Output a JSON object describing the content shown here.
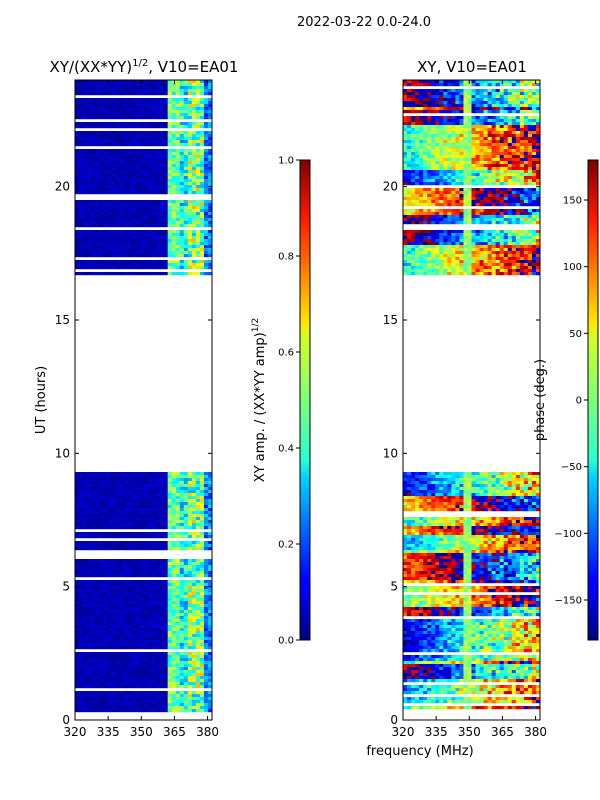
{
  "figure_title": "2022-03-22 0.0-24.0",
  "xlabel": "frequency (MHz)",
  "chart_data": [
    {
      "type": "heatmap",
      "title_main": "XY/(XX*YY)",
      "title_sup": "1/2",
      "title_rest": ", V10=EA01",
      "ylabel": "UT (hours)",
      "xlim": [
        320,
        382
      ],
      "ylim": [
        0,
        24
      ],
      "xticks": [
        "320",
        "335",
        "350",
        "365",
        "380"
      ],
      "xtick_values": [
        320,
        335,
        350,
        365,
        380
      ],
      "yticks": [
        "0",
        "5",
        "10",
        "15",
        "20"
      ],
      "ytick_values": [
        0,
        5,
        10,
        15,
        20
      ],
      "data_time_ranges": [
        [
          0.3,
          9.3
        ],
        [
          16.7,
          24.0
        ]
      ],
      "colorbar": {
        "label_main": "XY amp. / (XX*YY amp)",
        "label_sup": "1/2",
        "range": [
          0.0,
          1.0
        ],
        "ticks": [
          "0.0",
          "0.2",
          "0.4",
          "0.6",
          "0.8",
          "1.0"
        ],
        "tick_values": [
          0.0,
          0.2,
          0.4,
          0.6,
          0.8,
          1.0
        ]
      }
    },
    {
      "type": "heatmap",
      "title": "XY, V10=EA01",
      "xlim": [
        320,
        382
      ],
      "ylim": [
        0,
        24
      ],
      "xticks": [
        "320",
        "335",
        "350",
        "365",
        "380"
      ],
      "xtick_values": [
        320,
        335,
        350,
        365,
        380
      ],
      "yticks": [
        "0",
        "5",
        "10",
        "15",
        "20"
      ],
      "ytick_values": [
        0,
        5,
        10,
        15,
        20
      ],
      "data_time_ranges": [
        [
          0.3,
          9.3
        ],
        [
          16.7,
          24.0
        ]
      ],
      "colorbar": {
        "label": "phase (deg.)",
        "range": [
          -180,
          180
        ],
        "ticks": [
          "−150",
          "−100",
          "−50",
          "0",
          "50",
          "100",
          "150"
        ],
        "tick_values": [
          -150,
          -100,
          -50,
          0,
          50,
          100,
          150
        ]
      }
    }
  ],
  "colors": {
    "jet_low": "#00007f",
    "jet_high": "#7f0000"
  }
}
